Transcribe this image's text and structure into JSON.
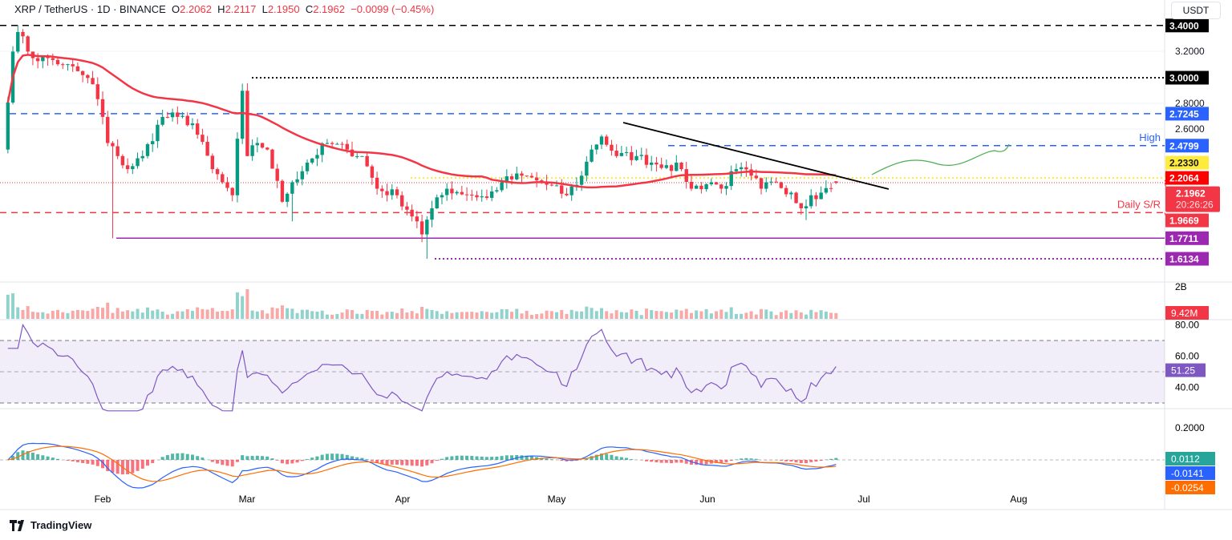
{
  "header": {
    "symbol": "XRP / TetherUS · 1D · BINANCE",
    "o_label": "O",
    "o": "2.2062",
    "h_label": "H",
    "h": "2.2117",
    "l_label": "L",
    "l": "2.1950",
    "c_label": "C",
    "c": "2.1962",
    "change": "−0.0099 (−0.45%)"
  },
  "currency": "USDT",
  "brand": "TradingView",
  "colors": {
    "up": "#089981",
    "down": "#f23645",
    "ma": "#f23645",
    "rsi": "#7e57c2",
    "macd": "#2962ff",
    "signal": "#ff6d00",
    "blue_level": "#2962ff",
    "purple_level": "#9c27b0",
    "yellow_level": "#ffeb3b",
    "projection": "#4caf50"
  },
  "chart_data": {
    "type": "candlestick",
    "x_ticks": [
      "Feb",
      "Mar",
      "Apr",
      "May",
      "Jun",
      "Jul",
      "Aug"
    ],
    "y_ticks": [
      "3.2000",
      "2.8000",
      "2.6000"
    ],
    "ylim": [
      1.45,
      3.45
    ],
    "price_path": [
      [
        "2025-01-13",
        2.5
      ],
      [
        "2025-01-15",
        3.2
      ],
      [
        "2025-01-16",
        3.35
      ],
      [
        "2025-01-19",
        3.15
      ],
      [
        "2025-01-22",
        3.15
      ],
      [
        "2025-01-25",
        3.1
      ],
      [
        "2025-01-28",
        3.05
      ],
      [
        "2025-01-31",
        2.95
      ],
      [
        "2025-02-02",
        2.7
      ],
      [
        "2025-02-03",
        2.5
      ],
      [
        "2025-02-05",
        2.4
      ],
      [
        "2025-02-07",
        2.3
      ],
      [
        "2025-02-10",
        2.4
      ],
      [
        "2025-02-14",
        2.7
      ],
      [
        "2025-02-17",
        2.7
      ],
      [
        "2025-02-20",
        2.65
      ],
      [
        "2025-02-24",
        2.3
      ],
      [
        "2025-02-26",
        2.2
      ],
      [
        "2025-02-28",
        2.1
      ],
      [
        "2025-03-02",
        2.9
      ],
      [
        "2025-03-03",
        2.4
      ],
      [
        "2025-03-05",
        2.5
      ],
      [
        "2025-03-07",
        2.45
      ],
      [
        "2025-03-10",
        2.05
      ],
      [
        "2025-03-12",
        2.2
      ],
      [
        "2025-03-15",
        2.35
      ],
      [
        "2025-03-19",
        2.5
      ],
      [
        "2025-03-23",
        2.45
      ],
      [
        "2025-03-26",
        2.4
      ],
      [
        "2025-03-29",
        2.15
      ],
      [
        "2025-04-02",
        2.1
      ],
      [
        "2025-04-06",
        1.9
      ],
      [
        "2025-04-07",
        1.8
      ],
      [
        "2025-04-09",
        2.0
      ],
      [
        "2025-04-12",
        2.15
      ],
      [
        "2025-04-20",
        2.08
      ],
      [
        "2025-04-23",
        2.2
      ],
      [
        "2025-04-27",
        2.25
      ],
      [
        "2025-05-01",
        2.2
      ],
      [
        "2025-05-06",
        2.1
      ],
      [
        "2025-05-09",
        2.25
      ],
      [
        "2025-05-11",
        2.45
      ],
      [
        "2025-05-13",
        2.55
      ],
      [
        "2025-05-16",
        2.4
      ],
      [
        "2025-05-20",
        2.4
      ],
      [
        "2025-05-23",
        2.35
      ],
      [
        "2025-05-26",
        2.33
      ],
      [
        "2025-05-29",
        2.3
      ],
      [
        "2025-05-31",
        2.15
      ],
      [
        "2025-06-04",
        2.2
      ],
      [
        "2025-06-06",
        2.15
      ],
      [
        "2025-06-09",
        2.3
      ],
      [
        "2025-06-12",
        2.25
      ],
      [
        "2025-06-14",
        2.15
      ],
      [
        "2025-06-17",
        2.2
      ],
      [
        "2025-06-20",
        2.12
      ],
      [
        "2025-06-22",
        2.0
      ],
      [
        "2025-06-24",
        2.1
      ],
      [
        "2025-06-26",
        2.12
      ],
      [
        "2025-06-29",
        2.1962
      ]
    ],
    "ma_period": 50,
    "levels": [
      {
        "value": 3.4,
        "label": "3.4000",
        "style": "dashed",
        "color": "#000000"
      },
      {
        "value": 3.0,
        "label": "3.0000",
        "style": "dotted",
        "color": "#000000"
      },
      {
        "value": 2.7245,
        "label": "2.7245",
        "style": "dashed",
        "color": "#2962ff"
      },
      {
        "value": 2.4799,
        "label": "2.4799",
        "style": "dashed",
        "color": "#2962ff",
        "text": "High"
      },
      {
        "value": 2.233,
        "label": "2.2330",
        "style": "dotted",
        "color": "#ffeb3b"
      },
      {
        "value": 2.2064,
        "label": "2.2064",
        "style": "none",
        "color": "#ff0000"
      },
      {
        "value": 1.9669,
        "label": "1.9669",
        "style": "dashed",
        "color": "#f23645",
        "text": "Daily S/R"
      },
      {
        "value": 1.7711,
        "label": "1.7711",
        "style": "solid",
        "color": "#9c27b0"
      },
      {
        "value": 1.6134,
        "label": "1.6134",
        "style": "dotted",
        "color": "#9c27b0"
      }
    ],
    "last_price": {
      "value": "2.1962",
      "countdown": "20:26:26"
    },
    "volume": {
      "axis_label": "2B",
      "last": "9.42M"
    },
    "rsi": {
      "ticks": [
        "80.00",
        "60.00",
        "40.00"
      ],
      "last": "51.25",
      "upper": 70,
      "lower": 30
    },
    "macd": {
      "ticks": [
        "0.2000"
      ],
      "histogram": "0.0112",
      "macd": "-0.0141",
      "signal": "-0.0254"
    }
  }
}
